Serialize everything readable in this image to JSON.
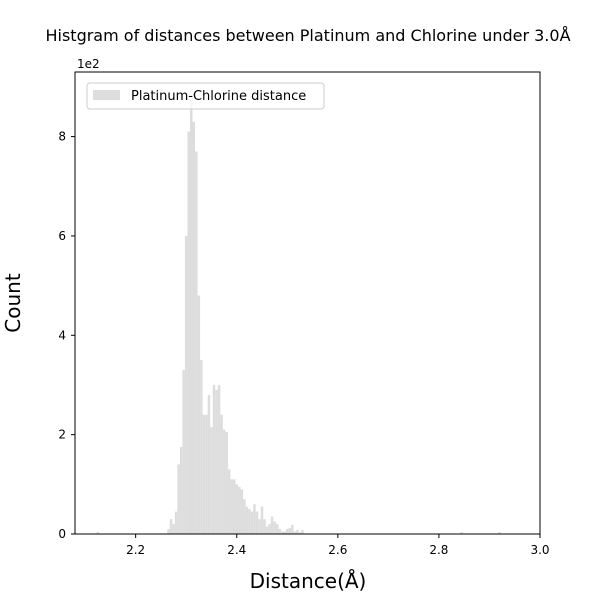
{
  "chart_data": {
    "type": "bar",
    "title": "Histgram of distances between Platinum and Chlorine under 3.0Å",
    "xlabel": "Distance(Å)",
    "ylabel": "Count",
    "y_scale_label": "1e2",
    "xlim": [
      2.08,
      3.0
    ],
    "ylim": [
      0,
      9.3
    ],
    "x_ticks": [
      "2.2",
      "2.4",
      "2.6",
      "2.8",
      "3.0"
    ],
    "y_ticks": [
      "0",
      "2",
      "4",
      "6",
      "8"
    ],
    "grid": false,
    "legend_position": "top-left",
    "bar_color": "#dddddd",
    "series": [
      {
        "name": "Platinum-Chlorine distance",
        "bin_width": 0.005,
        "x": [
          2.125,
          2.265,
          2.27,
          2.275,
          2.28,
          2.285,
          2.29,
          2.295,
          2.3,
          2.305,
          2.31,
          2.315,
          2.32,
          2.325,
          2.33,
          2.335,
          2.34,
          2.345,
          2.35,
          2.355,
          2.36,
          2.365,
          2.37,
          2.375,
          2.38,
          2.385,
          2.39,
          2.395,
          2.4,
          2.405,
          2.41,
          2.415,
          2.42,
          2.425,
          2.43,
          2.435,
          2.44,
          2.445,
          2.45,
          2.455,
          2.46,
          2.465,
          2.47,
          2.475,
          2.48,
          2.485,
          2.49,
          2.495,
          2.5,
          2.505,
          2.51,
          2.515,
          2.52,
          2.525,
          2.53,
          2.845,
          2.92
        ],
        "values": [
          0.04,
          0.1,
          0.3,
          0.2,
          0.45,
          1.4,
          1.75,
          3.3,
          6.0,
          8.1,
          8.75,
          8.3,
          7.7,
          4.8,
          3.5,
          2.4,
          2.4,
          2.8,
          2.15,
          3.0,
          2.9,
          3.0,
          2.4,
          2.1,
          2.05,
          1.3,
          1.1,
          1.1,
          1.0,
          0.95,
          0.9,
          0.7,
          0.55,
          0.5,
          0.45,
          0.6,
          0.45,
          0.3,
          0.55,
          0.3,
          0.15,
          0.2,
          0.35,
          0.25,
          0.2,
          0.1,
          0.05,
          0.05,
          0.1,
          0.12,
          0.18,
          0.05,
          0.08,
          0.03,
          0.08,
          0.04,
          0.04
        ]
      }
    ]
  }
}
